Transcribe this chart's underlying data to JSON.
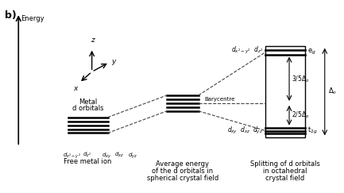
{
  "bg_color": "#ffffff",
  "title_b": "b)",
  "energy_label": "Energy",
  "free_metal_label1": "Metal",
  "free_metal_label2": "d orbitals",
  "free_metal_sublabel": "Free metal ion",
  "avg_label1": "Average energy",
  "avg_label2": "of the d orbitals in",
  "avg_label3": "spherical crystal field",
  "split_label1": "Splitting of d orbitals",
  "split_label2": "in octahedral",
  "split_label3": "crystal field",
  "eg_label": "e$_g$",
  "t2g_label": "t$_{2g}$",
  "barycentre_label": "Barycentre",
  "delta_o_label": "Δ$_o$",
  "upper_frac_label": "3/5Δ$_o$",
  "lower_frac_label": "2/5Δ$_o$",
  "line_color": "#000000",
  "dashed_color": "#444444"
}
